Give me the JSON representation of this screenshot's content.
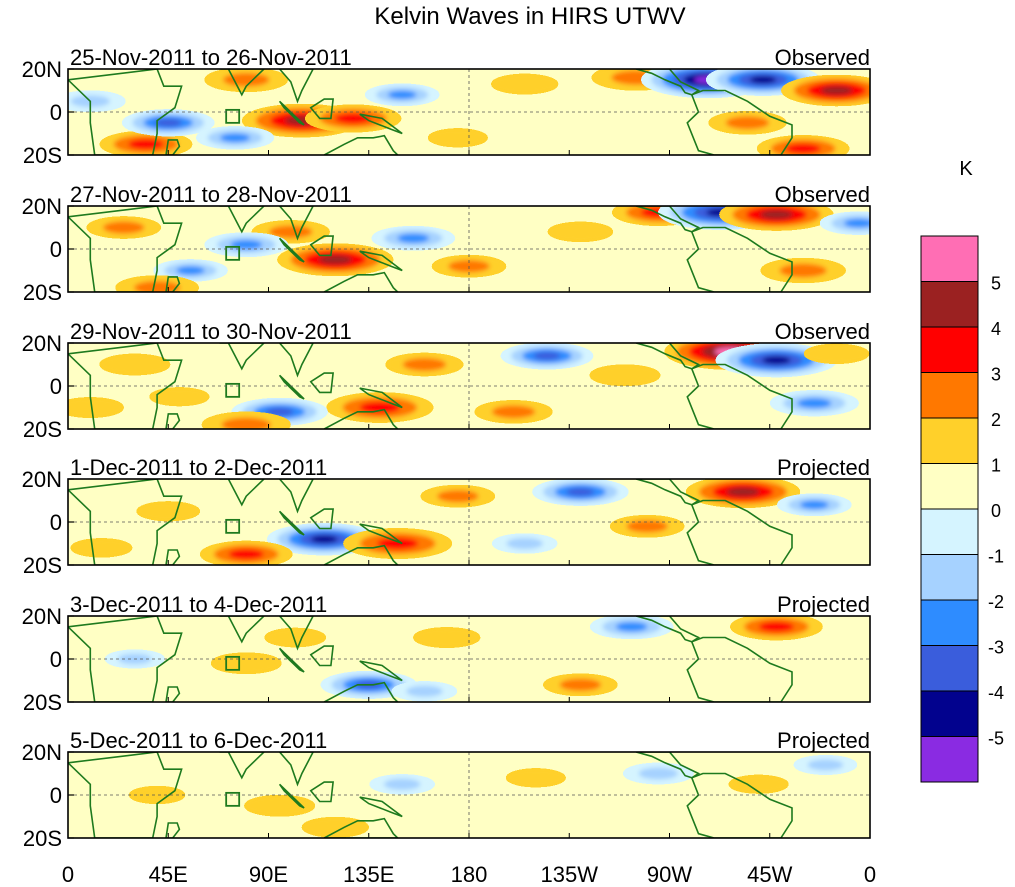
{
  "chart_data": {
    "type": "heatmap",
    "title": "Kelvin Waves in HIRS UTWV",
    "colorbar": {
      "unit": "K",
      "levels": [
        5,
        4,
        3,
        2,
        1,
        0,
        -1,
        -2,
        -3,
        -4,
        -5
      ],
      "colors": [
        "#ff6eb4",
        "#9b2121",
        "#ff0000",
        "#ff7800",
        "#ffd02a",
        "#ffffc4",
        "#d5f4ff",
        "#a6d2ff",
        "#2e8cff",
        "#3a5ddc",
        "#02028e",
        "#8a2be2"
      ]
    },
    "x_ticks": [
      "0",
      "45E",
      "90E",
      "135E",
      "180",
      "135W",
      "90W",
      "45W",
      "0"
    ],
    "y_ticks": [
      "20N",
      "0",
      "20S"
    ],
    "lon_range": [
      0,
      360
    ],
    "lat_range": [
      -20,
      20
    ],
    "panels": [
      {
        "date_range": "25-Nov-2011 to 26-Nov-2011",
        "kind": "Observed",
        "anomalies": [
          {
            "lon": 105,
            "lat": -4,
            "value": 4.5
          },
          {
            "lon": 128,
            "lat": -3,
            "value": 3.2
          },
          {
            "lon": 80,
            "lat": 15,
            "value": 2.5
          },
          {
            "lon": 35,
            "lat": -15,
            "value": 3.0
          },
          {
            "lon": 45,
            "lat": -5,
            "value": -3.0
          },
          {
            "lon": 75,
            "lat": -12,
            "value": -2.2
          },
          {
            "lon": 150,
            "lat": 8,
            "value": -2.0
          },
          {
            "lon": 205,
            "lat": 13,
            "value": 1.6
          },
          {
            "lon": 255,
            "lat": 16,
            "value": 2.8
          },
          {
            "lon": 287,
            "lat": 15,
            "value": -5.2
          },
          {
            "lon": 312,
            "lat": 15,
            "value": -4.2
          },
          {
            "lon": 345,
            "lat": 10,
            "value": 4.0
          },
          {
            "lon": 305,
            "lat": -5,
            "value": 2.2
          },
          {
            "lon": 330,
            "lat": -17,
            "value": 3.0
          },
          {
            "lon": 10,
            "lat": 5,
            "value": -1.8
          },
          {
            "lon": 175,
            "lat": -12,
            "value": 1.2
          }
        ]
      },
      {
        "date_range": "27-Nov-2011 to 28-Nov-2011",
        "kind": "Observed",
        "anomalies": [
          {
            "lon": 120,
            "lat": -5,
            "value": 4.3
          },
          {
            "lon": 100,
            "lat": 8,
            "value": 2.2
          },
          {
            "lon": 25,
            "lat": 10,
            "value": 2.0
          },
          {
            "lon": 55,
            "lat": -10,
            "value": -2.0
          },
          {
            "lon": 80,
            "lat": 2,
            "value": -2.5
          },
          {
            "lon": 155,
            "lat": 5,
            "value": -2.5
          },
          {
            "lon": 180,
            "lat": -8,
            "value": 2.0
          },
          {
            "lon": 230,
            "lat": 8,
            "value": 1.5
          },
          {
            "lon": 265,
            "lat": 17,
            "value": 3.0
          },
          {
            "lon": 293,
            "lat": 17,
            "value": -4.8
          },
          {
            "lon": 318,
            "lat": 16,
            "value": 4.2
          },
          {
            "lon": 330,
            "lat": -10,
            "value": 2.6
          },
          {
            "lon": 355,
            "lat": 12,
            "value": -2.2
          },
          {
            "lon": 40,
            "lat": -18,
            "value": 2.5
          }
        ]
      },
      {
        "date_range": "29-Nov-2011 to 30-Nov-2011",
        "kind": "Observed",
        "anomalies": [
          {
            "lon": 140,
            "lat": -10,
            "value": 3.8
          },
          {
            "lon": 95,
            "lat": -12,
            "value": -3.2
          },
          {
            "lon": 30,
            "lat": 10,
            "value": 1.8
          },
          {
            "lon": 50,
            "lat": -5,
            "value": 1.2
          },
          {
            "lon": 160,
            "lat": 10,
            "value": 2.2
          },
          {
            "lon": 215,
            "lat": 14,
            "value": -3.0
          },
          {
            "lon": 250,
            "lat": 5,
            "value": 1.8
          },
          {
            "lon": 200,
            "lat": -12,
            "value": 2.2
          },
          {
            "lon": 297,
            "lat": 16,
            "value": 5.1
          },
          {
            "lon": 318,
            "lat": 12,
            "value": -4.6
          },
          {
            "lon": 335,
            "lat": -8,
            "value": -2.8
          },
          {
            "lon": 80,
            "lat": -18,
            "value": 2.8
          },
          {
            "lon": 10,
            "lat": -10,
            "value": 1.6
          },
          {
            "lon": 345,
            "lat": 15,
            "value": 1.5
          }
        ]
      },
      {
        "date_range": "1-Dec-2011 to 2-Dec-2011",
        "kind": "Projected",
        "anomalies": [
          {
            "lon": 115,
            "lat": -8,
            "value": -4.2
          },
          {
            "lon": 148,
            "lat": -10,
            "value": 3.9
          },
          {
            "lon": 80,
            "lat": -15,
            "value": 3.0
          },
          {
            "lon": 175,
            "lat": 12,
            "value": 2.0
          },
          {
            "lon": 230,
            "lat": 14,
            "value": -3.2
          },
          {
            "lon": 260,
            "lat": -2,
            "value": 2.0
          },
          {
            "lon": 303,
            "lat": 14,
            "value": 4.2
          },
          {
            "lon": 335,
            "lat": 8,
            "value": -2.0
          },
          {
            "lon": 45,
            "lat": 5,
            "value": 1.4
          },
          {
            "lon": 15,
            "lat": -12,
            "value": 1.3
          },
          {
            "lon": 205,
            "lat": -10,
            "value": -1.5
          }
        ]
      },
      {
        "date_range": "3-Dec-2011 to 4-Dec-2011",
        "kind": "Projected",
        "anomalies": [
          {
            "lon": 135,
            "lat": -12,
            "value": -3.2
          },
          {
            "lon": 80,
            "lat": -2,
            "value": 1.8
          },
          {
            "lon": 102,
            "lat": 10,
            "value": 1.3
          },
          {
            "lon": 170,
            "lat": 10,
            "value": 1.6
          },
          {
            "lon": 253,
            "lat": 15,
            "value": -2.5
          },
          {
            "lon": 318,
            "lat": 15,
            "value": 3.0
          },
          {
            "lon": 230,
            "lat": -12,
            "value": 2.0
          },
          {
            "lon": 160,
            "lat": -15,
            "value": -1.5
          },
          {
            "lon": 30,
            "lat": 0,
            "value": -1.2
          }
        ]
      },
      {
        "date_range": "5-Dec-2011 to 6-Dec-2011",
        "kind": "Projected",
        "anomalies": [
          {
            "lon": 95,
            "lat": -5,
            "value": 1.8
          },
          {
            "lon": 120,
            "lat": -15,
            "value": 1.6
          },
          {
            "lon": 150,
            "lat": 5,
            "value": -1.5
          },
          {
            "lon": 210,
            "lat": 8,
            "value": 1.2
          },
          {
            "lon": 265,
            "lat": 10,
            "value": -1.8
          },
          {
            "lon": 310,
            "lat": 5,
            "value": 1.2
          },
          {
            "lon": 340,
            "lat": 14,
            "value": -1.4
          },
          {
            "lon": 40,
            "lat": 0,
            "value": 1.0
          }
        ]
      }
    ]
  }
}
